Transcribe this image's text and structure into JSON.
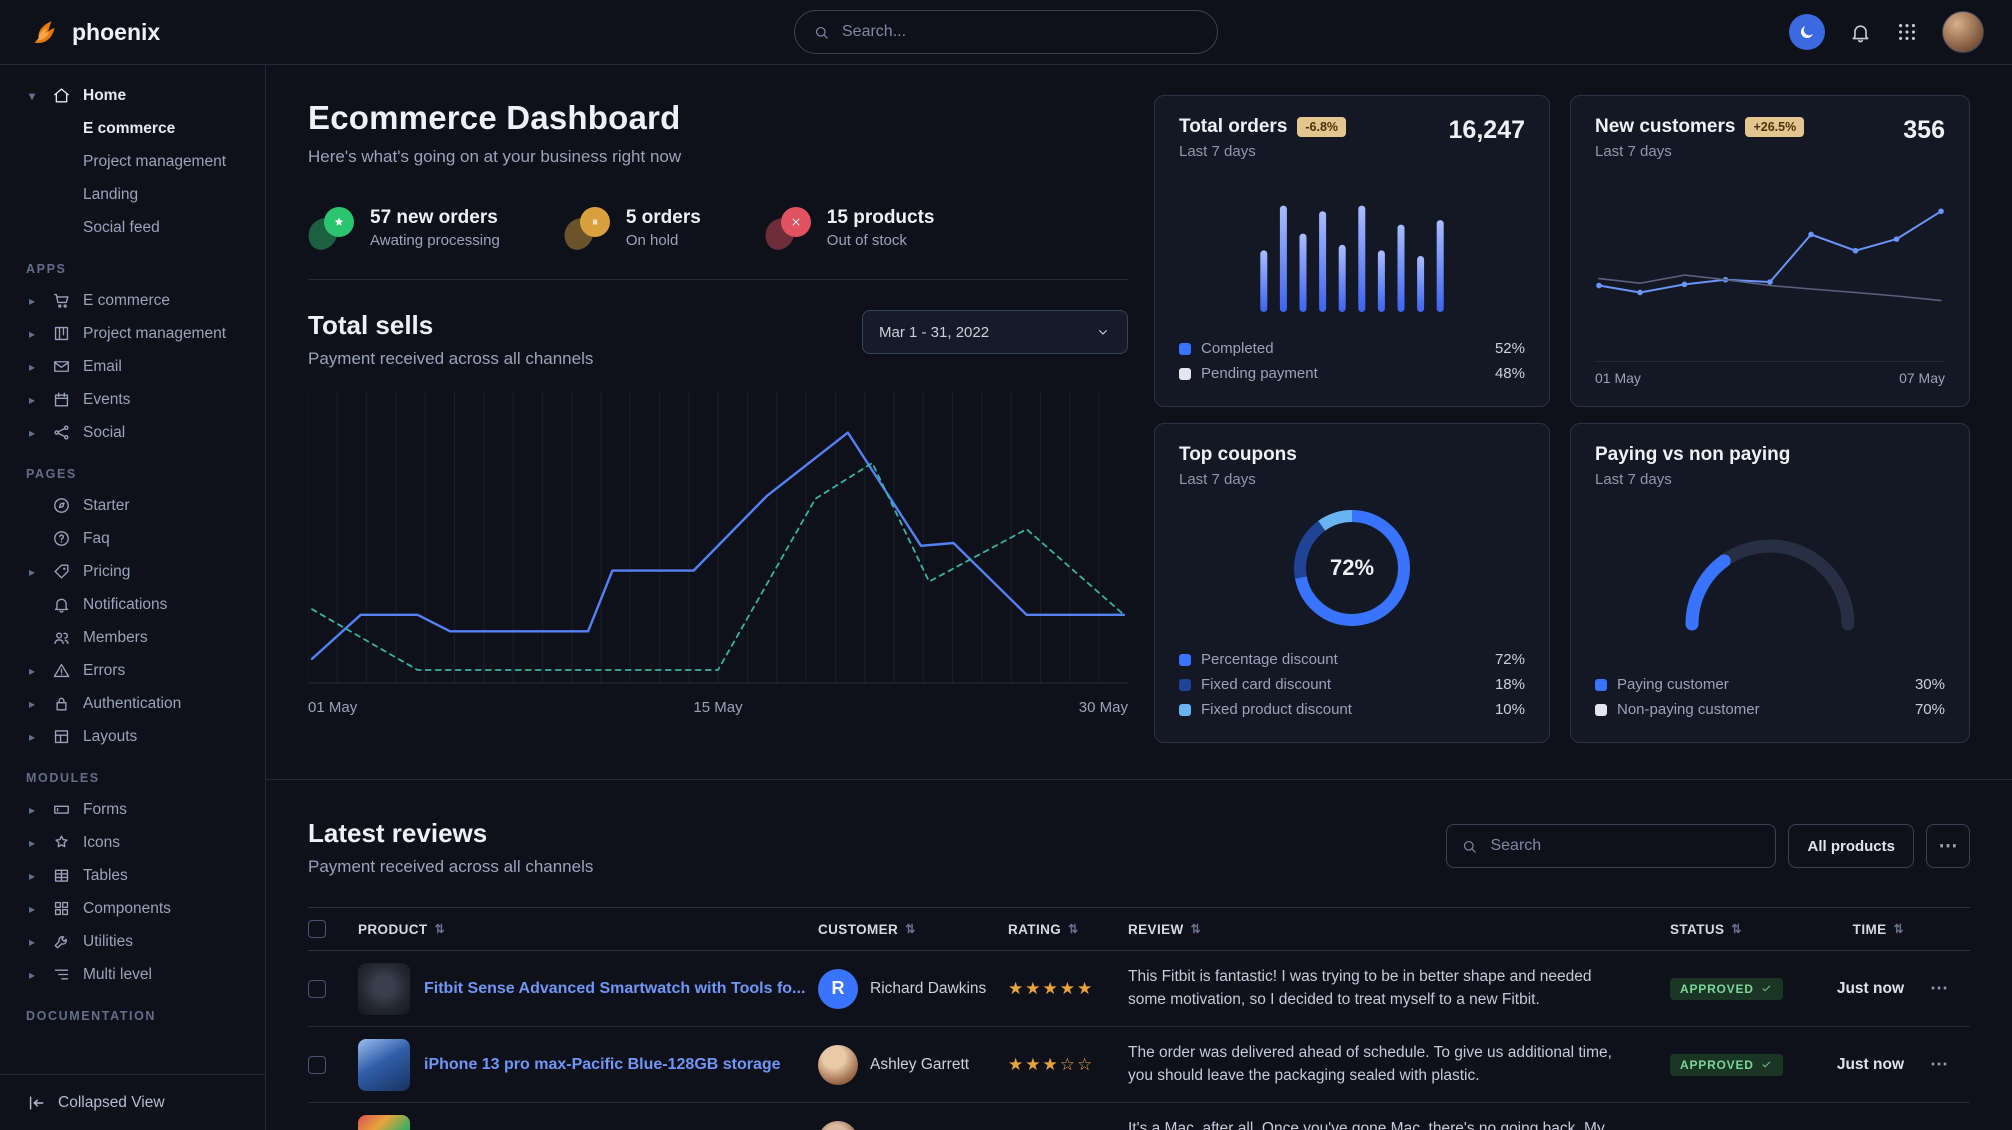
{
  "colors": {
    "accent": "#3874ff",
    "background": "#0f111a",
    "card": "#141824",
    "success": "#7ad69a",
    "warning": "#e3c58f",
    "star": "#e8a33d"
  },
  "navbar": {
    "brand": "phoenix",
    "search_placeholder": "Search..."
  },
  "sidebar": {
    "home": {
      "label": "Home",
      "icon": "home",
      "children": [
        {
          "label": "E commerce",
          "active": true
        },
        {
          "label": "Project management",
          "active": false
        },
        {
          "label": "Landing",
          "active": false
        },
        {
          "label": "Social feed",
          "active": false
        }
      ]
    },
    "sections": [
      {
        "title": "APPS",
        "items": [
          {
            "label": "E commerce",
            "icon": "cart",
            "caret": true
          },
          {
            "label": "Project management",
            "icon": "kanban",
            "caret": true
          },
          {
            "label": "Email",
            "icon": "mail",
            "caret": true
          },
          {
            "label": "Events",
            "icon": "calendar",
            "caret": true
          },
          {
            "label": "Social",
            "icon": "share",
            "caret": true
          }
        ]
      },
      {
        "title": "PAGES",
        "items": [
          {
            "label": "Starter",
            "icon": "compass",
            "caret": false
          },
          {
            "label": "Faq",
            "icon": "faq",
            "caret": false
          },
          {
            "label": "Pricing",
            "icon": "tag",
            "caret": true
          },
          {
            "label": "Notifications",
            "icon": "bell",
            "caret": false
          },
          {
            "label": "Members",
            "icon": "users",
            "caret": false
          },
          {
            "label": "Errors",
            "icon": "warning",
            "caret": true
          },
          {
            "label": "Authentication",
            "icon": "lock",
            "caret": true
          },
          {
            "label": "Layouts",
            "icon": "layout",
            "caret": true
          }
        ]
      },
      {
        "title": "MODULES",
        "items": [
          {
            "label": "Forms",
            "icon": "forms",
            "caret": true
          },
          {
            "label": "Icons",
            "icon": "shapes",
            "caret": true
          },
          {
            "label": "Tables",
            "icon": "table",
            "caret": true
          },
          {
            "label": "Components",
            "icon": "components",
            "caret": true
          },
          {
            "label": "Utilities",
            "icon": "wrench",
            "caret": true
          },
          {
            "label": "Multi level",
            "icon": "list",
            "caret": true
          }
        ]
      },
      {
        "title": "DOCUMENTATION",
        "items": []
      }
    ],
    "footer": {
      "label": "Collapsed View",
      "icon": "collapse"
    }
  },
  "header": {
    "title": "Ecommerce Dashboard",
    "subtitle": "Here's what's going on at your business right now"
  },
  "stats": [
    {
      "value": "57 new orders",
      "caption": "Awating processing",
      "color": "#2bc46f",
      "icon": "star"
    },
    {
      "value": "5 orders",
      "caption": "On hold",
      "color": "#d9a13e",
      "icon": "pause"
    },
    {
      "value": "15 products",
      "caption": "Out of stock",
      "color": "#e05260",
      "icon": "x"
    }
  ],
  "total_sells": {
    "title": "Total sells",
    "subtitle": "Payment received across all channels",
    "date_range": "Mar 1 - 31, 2022",
    "chart_data": {
      "type": "line",
      "x_labels": [
        "01 May",
        "15 May",
        "30 May"
      ],
      "series": [
        {
          "name": "current",
          "style": "solid",
          "color": "#5581f7",
          "width": 2.4,
          "points": [
            [
              0,
              8
            ],
            [
              6,
              24
            ],
            [
              13,
              24
            ],
            [
              17,
              18
            ],
            [
              34,
              18
            ],
            [
              37,
              40
            ],
            [
              47,
              40
            ],
            [
              56,
              67
            ],
            [
              66,
              90
            ],
            [
              75,
              49
            ],
            [
              79,
              50
            ],
            [
              88,
              24
            ],
            [
              100,
              24
            ]
          ]
        },
        {
          "name": "previous",
          "style": "dashed",
          "color": "#38b2a3",
          "width": 1.8,
          "points": [
            [
              0,
              26
            ],
            [
              13,
              4
            ],
            [
              50,
              4
            ],
            [
              62,
              66
            ],
            [
              69,
              79
            ],
            [
              76,
              36
            ],
            [
              88,
              55
            ],
            [
              100,
              24
            ]
          ]
        }
      ]
    }
  },
  "cards": {
    "total_orders": {
      "title": "Total orders",
      "badge": "-6.8%",
      "period": "Last 7 days",
      "value": "16,247",
      "chart_data": {
        "type": "bar",
        "values": [
          55,
          95,
          70,
          90,
          60,
          95,
          55,
          78,
          50,
          82
        ]
      },
      "legend": [
        {
          "label": "Completed",
          "value": "52%",
          "color": "#3874ff"
        },
        {
          "label": "Pending payment",
          "value": "48%",
          "color": "#e3e6ed"
        }
      ]
    },
    "new_customers": {
      "title": "New customers",
      "badge": "+26.5%",
      "period": "Last 7 days",
      "value": "356",
      "chart_data": {
        "type": "line",
        "x_labels": [
          "01 May",
          "07 May"
        ],
        "series": [
          {
            "name": "new customers",
            "style": "solid",
            "color": "#6a94f8",
            "width": 2,
            "dots": true,
            "points": [
              [
                0,
                28
              ],
              [
                12,
                22
              ],
              [
                25,
                29
              ],
              [
                37,
                33
              ],
              [
                50,
                31
              ],
              [
                62,
                72
              ],
              [
                75,
                58
              ],
              [
                87,
                68
              ],
              [
                100,
                92
              ]
            ]
          },
          {
            "name": "previous",
            "style": "solid",
            "color": "#596180",
            "width": 1.6,
            "points": [
              [
                0,
                34
              ],
              [
                12,
                30
              ],
              [
                25,
                37
              ],
              [
                37,
                33
              ],
              [
                50,
                28
              ],
              [
                62,
                25
              ],
              [
                75,
                22
              ],
              [
                87,
                19
              ],
              [
                100,
                15
              ]
            ]
          }
        ]
      }
    },
    "top_coupons": {
      "title": "Top coupons",
      "period": "Last 7 days",
      "chart_data": {
        "type": "pie",
        "center_label": "72%",
        "slices": [
          {
            "label": "Percentage discount",
            "value": 72,
            "color": "#3874ff"
          },
          {
            "label": "Fixed card discount",
            "value": 18,
            "color": "#1f4396"
          },
          {
            "label": "Fixed product discount",
            "value": 10,
            "color": "#68b3f2"
          }
        ]
      },
      "legend": [
        {
          "label": "Percentage discount",
          "value": "72%",
          "color": "#3874ff"
        },
        {
          "label": "Fixed card discount",
          "value": "18%",
          "color": "#1f4396"
        },
        {
          "label": "Fixed product discount",
          "value": "10%",
          "color": "#68b3f2"
        }
      ]
    },
    "paying": {
      "title": "Paying vs non paying",
      "period": "Last 7 days",
      "chart_data": {
        "type": "gauge",
        "segments": [
          {
            "label": "Paying customer",
            "value": 30,
            "color": "#3874ff"
          },
          {
            "label": "Non-paying customer",
            "value": 70,
            "color": "#272f45"
          }
        ]
      },
      "legend": [
        {
          "label": "Paying customer",
          "value": "30%",
          "color": "#3874ff"
        },
        {
          "label": "Non-paying customer",
          "value": "70%",
          "color": "#e3e6ed"
        }
      ]
    }
  },
  "reviews": {
    "title": "Latest reviews",
    "subtitle": "Payment received across all channels",
    "search_placeholder": "Search",
    "filter_label": "All products",
    "more_label": "⋯",
    "columns": [
      "PRODUCT",
      "CUSTOMER",
      "RATING",
      "REVIEW",
      "STATUS",
      "TIME"
    ],
    "rows": [
      {
        "product": "Fitbit Sense Advanced Smartwatch with Tools fo...",
        "image": "watch",
        "customer": "Richard Dawkins",
        "avatar_type": "initial",
        "avatar_initial": "R",
        "rating": 5,
        "review": "This Fitbit is fantastic! I was trying to be in better shape and needed some motivation, so I decided to treat myself to a new Fitbit.",
        "status": "APPROVED",
        "time": "Just now"
      },
      {
        "product": "iPhone 13 pro max-Pacific Blue-128GB storage",
        "image": "iphone",
        "customer": "Ashley Garrett",
        "avatar_type": "photo",
        "avatar_class": "avatar-photo-1",
        "rating": 3,
        "review": "The order was delivered ahead of schedule. To give us additional time, you should leave the packaging sealed with plastic.",
        "status": "APPROVED",
        "time": "Just now"
      },
      {
        "product": "",
        "image": "macbook",
        "customer": "",
        "avatar_type": "photo",
        "avatar_class": "avatar-photo-2",
        "rating": 0,
        "review": "It's a Mac, after all. Once you've gone Mac, there's no going back. My first Mac lasted...",
        "status": "",
        "time": ""
      }
    ]
  }
}
